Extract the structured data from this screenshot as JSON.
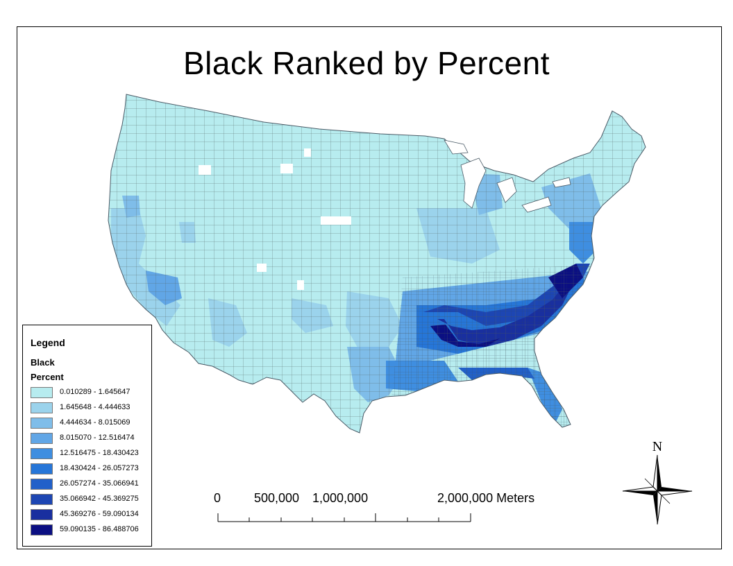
{
  "title": "Black Ranked by Percent",
  "legend": {
    "title": "Legend",
    "layer": "Black",
    "field": "Percent",
    "classes": [
      {
        "label": "0.010289 - 1.645647",
        "color": "#b7ecef"
      },
      {
        "label": "1.645648 - 4.444633",
        "color": "#9bd3ec"
      },
      {
        "label": "4.444634 - 8.015069",
        "color": "#7fbde9"
      },
      {
        "label": "8.015070 - 12.516474",
        "color": "#61a6e6"
      },
      {
        "label": "12.516475 - 18.430423",
        "color": "#3f8ee0"
      },
      {
        "label": "18.430424 - 26.057273",
        "color": "#2676d8"
      },
      {
        "label": "26.057274 - 35.066941",
        "color": "#2160c9"
      },
      {
        "label": "35.066942 - 45.369275",
        "color": "#1d46b3"
      },
      {
        "label": "45.369276 - 59.090134",
        "color": "#192f9f"
      },
      {
        "label": "59.090135 - 86.488706",
        "color": "#0b0f82"
      }
    ]
  },
  "scale_bar": {
    "labels": [
      "0",
      "500,000",
      "1,000,000",
      "2,000,000 Meters"
    ]
  },
  "north_arrow": {
    "label": "N",
    "icon": "north-arrow-icon"
  }
}
